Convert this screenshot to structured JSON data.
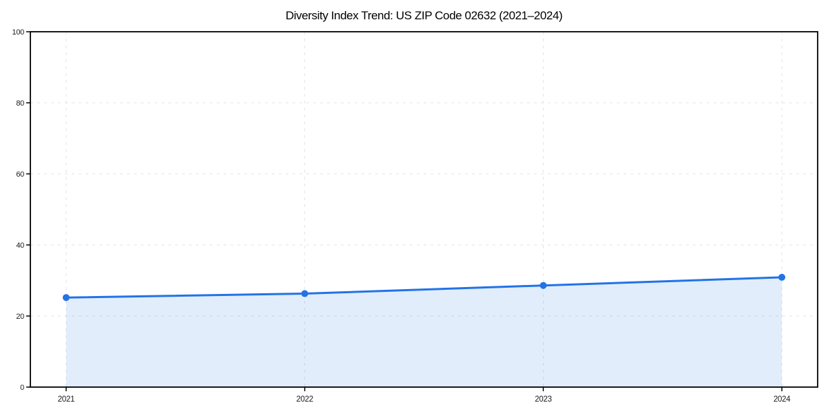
{
  "chart_data": {
    "type": "area",
    "title": "Diversity Index Trend: US ZIP Code 02632 (2021–2024)",
    "series_name": "Diversity Index",
    "x": [
      2021,
      2022,
      2023,
      2024
    ],
    "values": [
      25.2,
      26.3,
      28.6,
      30.9
    ],
    "xticks": [
      2021,
      2022,
      2023,
      2024
    ],
    "yticks": [
      0,
      20,
      40,
      60,
      80,
      100
    ],
    "xlim": [
      2020.85,
      2024.15
    ],
    "ylim": [
      0,
      100
    ],
    "xlabel": "",
    "ylabel": "",
    "grid": true,
    "legend_position": "none",
    "colors": {
      "line": "#2273e6",
      "marker": "#2273e6",
      "fill": "rgba(34,115,230,0.13)",
      "grid": "#e3e3e3",
      "spine": "#000000",
      "tick_label": "#1a1a1a",
      "title": "#000000",
      "background": "#ffffff"
    }
  }
}
